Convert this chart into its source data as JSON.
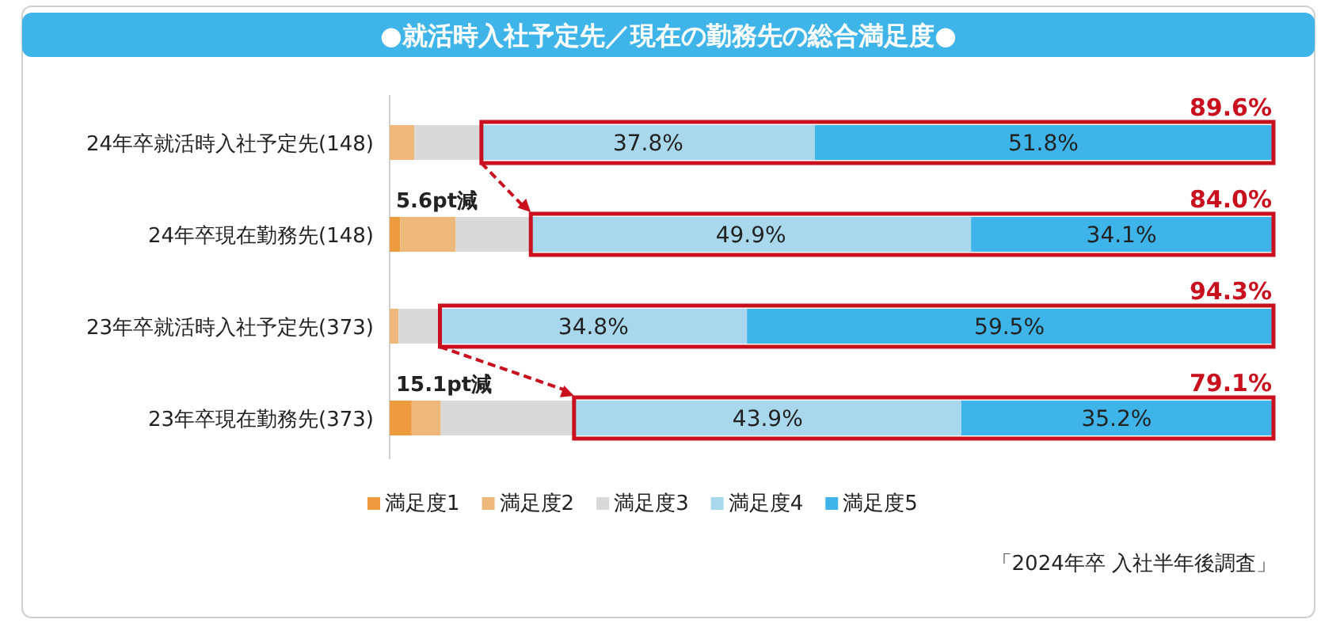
{
  "chart_data": {
    "type": "bar",
    "orientation": "horizontal",
    "stacked": true,
    "title": "●就活時入社予定先／現在の勤務先の総合満足度●",
    "categories": [
      "24年卒就活時入社予定先(148)",
      "24年卒現在勤務先(148)",
      "23年卒就活時入社予定先(373)",
      "23年卒現在勤務先(373)"
    ],
    "series": [
      {
        "name": "満足度1",
        "color": "#ee9a3f",
        "values": [
          0,
          1.2,
          0,
          2.5
        ]
      },
      {
        "name": "満足度2",
        "color": "#edb87c",
        "values": [
          2.8,
          6.3,
          1.0,
          3.3
        ]
      },
      {
        "name": "満足度3",
        "color": "#d9d9d9",
        "values": [
          7.6,
          8.5,
          4.7,
          15.1
        ]
      },
      {
        "name": "満足度4",
        "color": "#a9d8ec",
        "values": [
          37.8,
          49.9,
          34.8,
          43.9
        ],
        "value_labels": [
          "37.8%",
          "49.9%",
          "34.8%",
          "43.9%"
        ]
      },
      {
        "name": "満足度5",
        "color": "#3eb4e8",
        "values": [
          51.8,
          34.1,
          59.5,
          35.2
        ],
        "value_labels": [
          "51.8%",
          "34.1%",
          "59.5%",
          "35.2%"
        ]
      }
    ],
    "legend": "bottom",
    "annotations": [
      "89.6%",
      "84.0%",
      "94.3%",
      "79.1%",
      "5.6pt減",
      "15.1pt減",
      "「2024年卒 入社半年後調査」"
    ]
  }
}
